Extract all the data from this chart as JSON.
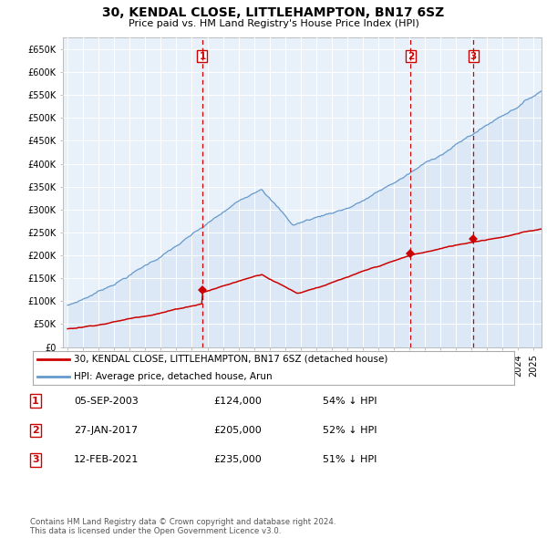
{
  "title": "30, KENDAL CLOSE, LITTLEHAMPTON, BN17 6SZ",
  "subtitle": "Price paid vs. HM Land Registry's House Price Index (HPI)",
  "ylabel_ticks": [
    "£0",
    "£50K",
    "£100K",
    "£150K",
    "£200K",
    "£250K",
    "£300K",
    "£350K",
    "£400K",
    "£450K",
    "£500K",
    "£550K",
    "£600K",
    "£650K"
  ],
  "ytick_values": [
    0,
    50000,
    100000,
    150000,
    200000,
    250000,
    300000,
    350000,
    400000,
    450000,
    500000,
    550000,
    600000,
    650000
  ],
  "ylim": [
    0,
    675000
  ],
  "xlim_start": 1994.7,
  "xlim_end": 2025.5,
  "sale_dates": [
    2003.674,
    2017.074,
    2021.115
  ],
  "sale_prices": [
    124000,
    205000,
    235000
  ],
  "sale_labels": [
    "1",
    "2",
    "3"
  ],
  "legend_property": "30, KENDAL CLOSE, LITTLEHAMPTON, BN17 6SZ (detached house)",
  "legend_hpi": "HPI: Average price, detached house, Arun",
  "transactions": [
    {
      "label": "1",
      "date": "05-SEP-2003",
      "price": "£124,000",
      "pct": "54% ↓ HPI"
    },
    {
      "label": "2",
      "date": "27-JAN-2017",
      "price": "£205,000",
      "pct": "52% ↓ HPI"
    },
    {
      "label": "3",
      "date": "12-FEB-2021",
      "price": "£235,000",
      "pct": "51% ↓ HPI"
    }
  ],
  "footnote": "Contains HM Land Registry data © Crown copyright and database right 2024.\nThis data is licensed under the Open Government Licence v3.0.",
  "property_color": "#cc0000",
  "hpi_color": "#6699cc",
  "hpi_fill_color": "#dce8f5",
  "background_color": "#e8f0fa",
  "grid_color": "#ffffff"
}
